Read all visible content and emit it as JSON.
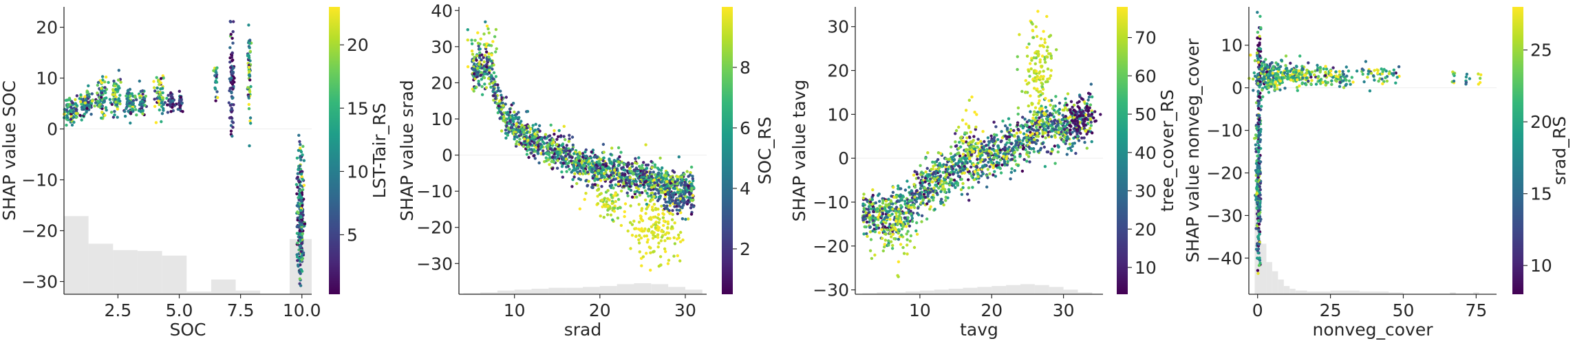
{
  "colormap": [
    "#440154",
    "#482878",
    "#3e4989",
    "#31688e",
    "#26828e",
    "#1f9e89",
    "#35b779",
    "#6ece58",
    "#b5de2b",
    "#fde725"
  ],
  "hist_color": "#e6e6e6",
  "zero_line_color": "#eeeeee",
  "chart_data": [
    {
      "type": "scatter",
      "xlabel": "SOC",
      "ylabel": "SHAP value SOC",
      "colorbar_label": "LST-Tair_RS",
      "xlim": [
        0.3,
        10.4
      ],
      "ylim": [
        -32.5,
        24
      ],
      "xticks": [
        2.5,
        5.0,
        7.5,
        10.0
      ],
      "xtick_labels": [
        "2.5",
        "5.0",
        "7.5",
        "10.0"
      ],
      "yticks": [
        -30,
        -20,
        -10,
        0,
        10,
        20
      ],
      "ytick_labels": [
        "−30",
        "−20",
        "−10",
        "0",
        "10",
        "20"
      ],
      "clim": [
        0.3,
        23
      ],
      "cticks": [
        5,
        10,
        15,
        20
      ],
      "ctick_labels": [
        "5",
        "10",
        "15",
        "20"
      ],
      "hist": [
        [
          0.3,
          1.3,
          0.85
        ],
        [
          1.3,
          2.3,
          0.55
        ],
        [
          2.3,
          3.3,
          0.48
        ],
        [
          3.3,
          4.3,
          0.47
        ],
        [
          4.3,
          5.3,
          0.42
        ],
        [
          5.3,
          6.3,
          0.03
        ],
        [
          6.3,
          7.3,
          0.16
        ],
        [
          7.3,
          8.3,
          0.04
        ],
        [
          9.5,
          10.4,
          0.6
        ]
      ],
      "clusters": [
        {
          "x": 0.55,
          "y": 3.5,
          "sx": 0.2,
          "sy": 1.5,
          "c": 13,
          "cs": 6,
          "n": 90
        },
        {
          "x": 1.2,
          "y": 5.0,
          "sx": 0.15,
          "sy": 1.5,
          "c": 12,
          "cs": 6,
          "n": 70
        },
        {
          "x": 1.85,
          "y": 6.0,
          "sx": 0.12,
          "sy": 1.8,
          "c": 12,
          "cs": 6,
          "n": 80
        },
        {
          "x": 2.4,
          "y": 6.5,
          "sx": 0.1,
          "sy": 1.8,
          "c": 14,
          "cs": 5,
          "n": 60
        },
        {
          "x": 3.0,
          "y": 5.0,
          "sx": 0.12,
          "sy": 1.4,
          "c": 12,
          "cs": 6,
          "n": 70
        },
        {
          "x": 3.5,
          "y": 5.5,
          "sx": 0.08,
          "sy": 1.3,
          "c": 10,
          "cs": 6,
          "n": 40
        },
        {
          "x": 4.2,
          "y": 6.5,
          "sx": 0.1,
          "sy": 2.5,
          "c": 15,
          "cs": 6,
          "n": 60
        },
        {
          "x": 4.7,
          "y": 5.2,
          "sx": 0.08,
          "sy": 1.0,
          "c": 4,
          "cs": 3,
          "n": 40
        },
        {
          "x": 5.05,
          "y": 5.0,
          "sx": 0.04,
          "sy": 1.0,
          "c": 4,
          "cs": 3,
          "n": 30
        },
        {
          "x": 6.5,
          "y": 9.0,
          "sx": 0.04,
          "sy": 2.5,
          "c": 12,
          "cs": 6,
          "n": 20
        },
        {
          "x": 7.15,
          "y": 10.0,
          "sx": 0.05,
          "sy": 5.0,
          "c": 4,
          "cs": 4,
          "n": 80
        },
        {
          "x": 7.85,
          "y": 10.5,
          "sx": 0.04,
          "sy": 5.0,
          "c": 13,
          "cs": 7,
          "n": 60
        },
        {
          "x": 9.95,
          "y": -17.0,
          "sx": 0.07,
          "sy": 7.0,
          "c": 9,
          "cs": 6,
          "n": 250
        }
      ]
    },
    {
      "type": "scatter",
      "xlabel": "srad",
      "ylabel": "SHAP value srad",
      "colorbar_label": "SOC_RS",
      "xlim": [
        3.5,
        32.5
      ],
      "ylim": [
        -38.5,
        41
      ],
      "xticks": [
        10,
        20,
        30
      ],
      "xtick_labels": [
        "10",
        "20",
        "30"
      ],
      "yticks": [
        -30,
        -20,
        -10,
        0,
        10,
        20,
        30,
        40
      ],
      "ytick_labels": [
        "−30",
        "−20",
        "−10",
        "0",
        "10",
        "20",
        "30",
        "40"
      ],
      "clim": [
        0.5,
        10
      ],
      "cticks": [
        2,
        4,
        6,
        8
      ],
      "ctick_labels": [
        "2",
        "4",
        "6",
        "8"
      ],
      "hist": [
        [
          4,
          6,
          0.01
        ],
        [
          6,
          8,
          0.02
        ],
        [
          8,
          10,
          0.04
        ],
        [
          10,
          12,
          0.05
        ],
        [
          12,
          14,
          0.06
        ],
        [
          14,
          16,
          0.07
        ],
        [
          16,
          18,
          0.07
        ],
        [
          18,
          20,
          0.08
        ],
        [
          20,
          22,
          0.09
        ],
        [
          22,
          24,
          0.11
        ],
        [
          24,
          26,
          0.12
        ],
        [
          26,
          28,
          0.11
        ],
        [
          28,
          30,
          0.08
        ],
        [
          30,
          32,
          0.05
        ]
      ],
      "curve": {
        "points": [
          [
            5,
            22
          ],
          [
            7,
            25
          ],
          [
            8,
            15
          ],
          [
            9,
            10
          ],
          [
            10,
            8
          ],
          [
            12,
            4
          ],
          [
            14,
            2
          ],
          [
            16,
            0
          ],
          [
            18,
            -3
          ],
          [
            20,
            -4
          ],
          [
            22,
            -5
          ],
          [
            24,
            -6
          ],
          [
            26,
            -7
          ],
          [
            28,
            -8
          ],
          [
            30,
            -9
          ],
          [
            31,
            -10
          ]
        ],
        "spread": 2.5,
        "n": 1500,
        "xmin": 5,
        "xmax": 31,
        "cmode": "mix"
      },
      "extra": [
        {
          "x": 26.5,
          "y": -20.0,
          "sx": 1.6,
          "sy": 4.0,
          "c": 9.5,
          "cs": 0.4,
          "n": 160
        },
        {
          "x": 21.0,
          "y": -13.0,
          "sx": 1.0,
          "sy": 2.0,
          "c": 9.0,
          "cs": 0.8,
          "n": 70
        },
        {
          "x": 29.0,
          "y": -13.0,
          "sx": 1.0,
          "sy": 2.0,
          "c": 3.0,
          "cs": 1.0,
          "n": 60
        },
        {
          "x": 6.5,
          "y": 30.0,
          "sx": 0.8,
          "sy": 3.5,
          "c": 8.5,
          "cs": 1.5,
          "n": 40
        }
      ]
    },
    {
      "type": "scatter",
      "xlabel": "tavg",
      "ylabel": "SHAP value tavg",
      "colorbar_label": "tree_cover_RS",
      "xlim": [
        1,
        35.5
      ],
      "ylim": [
        -31,
        34.5
      ],
      "xticks": [
        10,
        20,
        30
      ],
      "xtick_labels": [
        "10",
        "20",
        "30"
      ],
      "yticks": [
        -30,
        -20,
        -10,
        0,
        10,
        20,
        30
      ],
      "ytick_labels": [
        "−30",
        "−20",
        "−10",
        "0",
        "10",
        "20",
        "30"
      ],
      "clim": [
        3,
        78
      ],
      "cticks": [
        10,
        20,
        30,
        40,
        50,
        60,
        70
      ],
      "ctick_labels": [
        "10",
        "20",
        "30",
        "40",
        "50",
        "60",
        "70"
      ],
      "hist": [
        [
          2,
          4,
          0.01
        ],
        [
          4,
          6,
          0.02
        ],
        [
          6,
          8,
          0.02
        ],
        [
          8,
          10,
          0.03
        ],
        [
          10,
          12,
          0.04
        ],
        [
          12,
          14,
          0.05
        ],
        [
          14,
          16,
          0.06
        ],
        [
          16,
          18,
          0.07
        ],
        [
          18,
          20,
          0.08
        ],
        [
          20,
          22,
          0.09
        ],
        [
          22,
          24,
          0.1
        ],
        [
          24,
          26,
          0.11
        ],
        [
          26,
          28,
          0.1
        ],
        [
          28,
          30,
          0.08
        ],
        [
          30,
          32,
          0.05
        ],
        [
          32,
          34,
          0.02
        ]
      ],
      "curve": {
        "points": [
          [
            2,
            -12
          ],
          [
            5,
            -13
          ],
          [
            8,
            -12
          ],
          [
            10,
            -8
          ],
          [
            12,
            -5
          ],
          [
            14,
            -3
          ],
          [
            16,
            -1
          ],
          [
            18,
            0
          ],
          [
            20,
            1
          ],
          [
            22,
            2
          ],
          [
            24,
            4
          ],
          [
            26,
            6
          ],
          [
            28,
            7
          ],
          [
            30,
            7
          ],
          [
            32,
            8
          ],
          [
            34,
            10
          ]
        ],
        "spread": 2.8,
        "n": 1500,
        "xmin": 2,
        "xmax": 34,
        "cmode": "mix"
      },
      "extra": [
        {
          "x": 26.5,
          "y": 20.0,
          "sx": 1.2,
          "sy": 6.0,
          "c": 72,
          "cs": 6,
          "n": 140
        },
        {
          "x": 6.0,
          "y": -17.0,
          "sx": 1.5,
          "sy": 3.5,
          "c": 70,
          "cs": 8,
          "n": 70
        },
        {
          "x": 32.5,
          "y": 10.0,
          "sx": 1.0,
          "sy": 2.0,
          "c": 6,
          "cs": 3,
          "n": 70
        },
        {
          "x": 16.5,
          "y": 5.0,
          "sx": 1.0,
          "sy": 4.0,
          "c": 72,
          "cs": 6,
          "n": 40
        }
      ]
    },
    {
      "type": "scatter",
      "xlabel": "nonveg_cover",
      "ylabel": "SHAP value nonveg_cover",
      "colorbar_label": "srad_RS",
      "xlim": [
        -3,
        82
      ],
      "ylim": [
        -48.5,
        19
      ],
      "xticks": [
        0,
        25,
        50,
        75
      ],
      "xtick_labels": [
        "0",
        "25",
        "50",
        "75"
      ],
      "yticks": [
        -40,
        -30,
        -20,
        -10,
        0,
        10
      ],
      "ytick_labels": [
        "−40",
        "−30",
        "−20",
        "−10",
        "0",
        "10"
      ],
      "clim": [
        8,
        28
      ],
      "cticks": [
        10,
        15,
        20,
        25
      ],
      "ctick_labels": [
        "10",
        "15",
        "20",
        "25"
      ],
      "hist": [
        [
          -1,
          1,
          1.0
        ],
        [
          1,
          3,
          0.55
        ],
        [
          3,
          5,
          0.35
        ],
        [
          5,
          7,
          0.25
        ],
        [
          7,
          9,
          0.16
        ],
        [
          9,
          11,
          0.09
        ],
        [
          11,
          13,
          0.06
        ],
        [
          13,
          17,
          0.04
        ],
        [
          17,
          25,
          0.03
        ],
        [
          25,
          35,
          0.04
        ],
        [
          35,
          45,
          0.03
        ],
        [
          45,
          50,
          0.02
        ],
        [
          66,
          68,
          0.02
        ],
        [
          74,
          76,
          0.02
        ]
      ],
      "clusters": [
        {
          "x": 0.3,
          "y": -22.0,
          "sx": 0.4,
          "sy": 11.0,
          "c": 16,
          "cs": 6,
          "n": 280
        },
        {
          "x": 0.5,
          "y": 5.0,
          "sx": 0.4,
          "sy": 5.0,
          "c": 12,
          "cs": 6,
          "n": 60
        },
        {
          "x": 4.0,
          "y": 3.0,
          "sx": 2.5,
          "sy": 2.0,
          "c": 20,
          "cs": 5,
          "n": 160
        },
        {
          "x": 12.0,
          "y": 3.0,
          "sx": 3.0,
          "sy": 1.4,
          "c": 22,
          "cs": 5,
          "n": 120
        },
        {
          "x": 25.0,
          "y": 2.7,
          "sx": 5.0,
          "sy": 1.2,
          "c": 22,
          "cs": 5,
          "n": 110
        },
        {
          "x": 42.0,
          "y": 3.0,
          "sx": 4.0,
          "sy": 1.0,
          "c": 20,
          "cs": 5,
          "n": 45
        },
        {
          "x": 67.0,
          "y": 2.5,
          "sx": 0.6,
          "sy": 0.8,
          "c": 24,
          "cs": 4,
          "n": 8
        },
        {
          "x": 72.0,
          "y": 2.0,
          "sx": 0.6,
          "sy": 0.8,
          "c": 18,
          "cs": 4,
          "n": 6
        },
        {
          "x": 76.0,
          "y": 2.5,
          "sx": 0.6,
          "sy": 0.8,
          "c": 26,
          "cs": 3,
          "n": 5
        }
      ]
    }
  ]
}
